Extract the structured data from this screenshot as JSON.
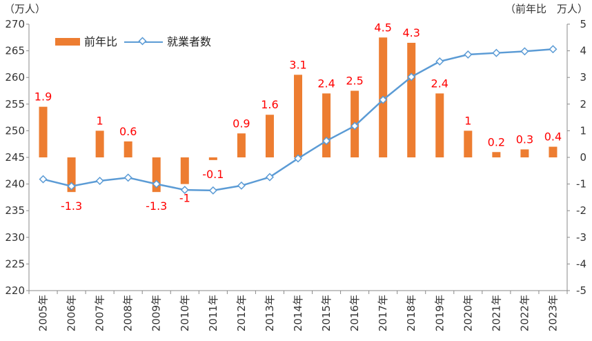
{
  "chart_data": {
    "type": "bar+line",
    "title": "",
    "categories": [
      "2005年",
      "2006年",
      "2007年",
      "2008年",
      "2009年",
      "2010年",
      "2011年",
      "2012年",
      "2013年",
      "2014年",
      "2015年",
      "2016年",
      "2017年",
      "2018年",
      "2019年",
      "2020年",
      "2021年",
      "2022年",
      "2023年"
    ],
    "series": [
      {
        "name": "前年比",
        "type": "bar",
        "axis": "right",
        "color": "#ed7d31",
        "values": [
          1.9,
          -1.3,
          1,
          0.6,
          -1.3,
          -1,
          -0.1,
          0.9,
          1.6,
          3.1,
          2.4,
          2.5,
          4.5,
          4.3,
          2.4,
          1,
          0.2,
          0.3,
          0.4
        ],
        "labels": [
          "1.9",
          "-1.3",
          "1",
          "0.6",
          "-1.3",
          "-1",
          "-0.1",
          "0.9",
          "1.6",
          "3.1",
          "2.4",
          "2.5",
          "4.5",
          "4.3",
          "2.4",
          "1",
          "0.2",
          "0.3",
          "0.4"
        ]
      },
      {
        "name": "就業者数",
        "type": "line",
        "axis": "left",
        "color": "#5b9bd5",
        "marker": "diamond",
        "values": [
          240.9,
          239.6,
          240.6,
          241.2,
          240.0,
          238.9,
          238.8,
          239.7,
          241.3,
          244.8,
          248.1,
          250.9,
          255.8,
          260.1,
          263.0,
          264.3,
          264.6,
          264.9,
          265.3
        ]
      }
    ],
    "y_left": {
      "unit_label": "（万人）",
      "ylim": [
        220,
        270
      ],
      "ticks": [
        "220",
        "225",
        "230",
        "235",
        "240",
        "245",
        "250",
        "255",
        "260",
        "265",
        "270"
      ]
    },
    "y_right": {
      "unit_label": "（前年比　万人）",
      "ylim": [
        -5,
        5
      ],
      "ticks": [
        "-5",
        "-4",
        "-3",
        "-2",
        "-1",
        "0",
        "1",
        "2",
        "3",
        "4",
        "5"
      ]
    },
    "grid": false,
    "legend": {
      "position": "top-left",
      "entries": [
        "前年比",
        "就業者数"
      ]
    },
    "label_color": "#ff0000"
  }
}
